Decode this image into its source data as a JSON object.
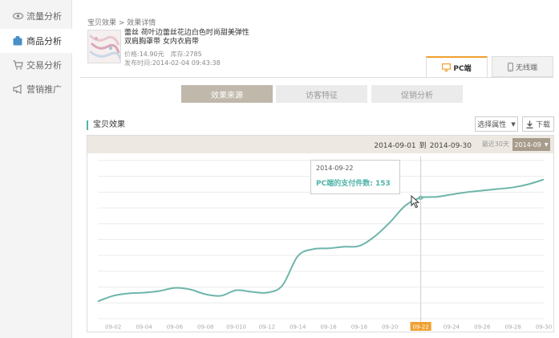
{
  "sidebar": {
    "items": [
      {
        "label": "流量分析",
        "icon": "eye-icon",
        "active": false
      },
      {
        "label": "商品分析",
        "icon": "bag-icon",
        "active": true
      },
      {
        "label": "交易分析",
        "icon": "cart-icon",
        "active": false
      },
      {
        "label": "营销推广",
        "icon": "megaphone-icon",
        "active": false
      }
    ]
  },
  "breadcrumb": "宝贝效果 > 效果详情",
  "product": {
    "title": "蕾丝 荷叶边蕾丝花边白色时尚甜美弹性双肩胸罩带 女内衣肩带",
    "price_label": "价格:",
    "price": "14.90元",
    "stock_label": "库存:",
    "stock": "2785",
    "publish_label": "发布时间:",
    "publish_time": "2014-02-04 09:43:38"
  },
  "device_tabs": {
    "pc": "PC端",
    "mobile": "无线端"
  },
  "segments": [
    "效果来源",
    "访客特征",
    "促销分析"
  ],
  "section": {
    "title": "宝贝效果",
    "select_label": "选择属性",
    "download_label": "下载"
  },
  "date_range": {
    "start": "2014-09-01",
    "to": "到",
    "end": "2014-09-30",
    "recent": "最近30天",
    "month": "2014-09"
  },
  "tooltip": {
    "date": "2014-09-22",
    "label": "PC端的支付件数:",
    "value": "153"
  },
  "colors": {
    "accent": "#f0a030",
    "line": "#6db5ab",
    "tooltip_text": "#4fb3a8",
    "segment_active": "#bfb8ab"
  },
  "chart_data": {
    "type": "line",
    "x": [
      "09-01",
      "09-02",
      "09-03",
      "09-04",
      "09-05",
      "09-06",
      "09-07",
      "09-08",
      "09-09",
      "09-10",
      "09-11",
      "09-12",
      "09-13",
      "09-14",
      "09-15",
      "09-16",
      "09-17",
      "09-18",
      "09-19",
      "09-20",
      "09-21",
      "09-22",
      "09-23",
      "09-24",
      "09-25",
      "09-26",
      "09-27",
      "09-28",
      "09-29",
      "09-30"
    ],
    "tick_labels": [
      "09-02",
      "09-04",
      "09-06",
      "09-08",
      "09-010",
      "09-12",
      "09-14",
      "09-16",
      "09-18",
      "09-20",
      "09-22",
      "09-24",
      "09-26",
      "09-28",
      "09-30"
    ],
    "highlighted_tick": "09-22",
    "values": [
      22,
      29,
      32,
      33,
      35,
      39,
      37,
      31,
      29,
      36,
      34,
      33,
      42,
      79,
      88,
      89,
      91,
      92,
      104,
      122,
      143,
      153,
      154,
      157,
      160,
      162,
      164,
      166,
      170,
      176
    ],
    "ylim": [
      0,
      205
    ],
    "grid": true,
    "series_name": "PC端的支付件数"
  }
}
